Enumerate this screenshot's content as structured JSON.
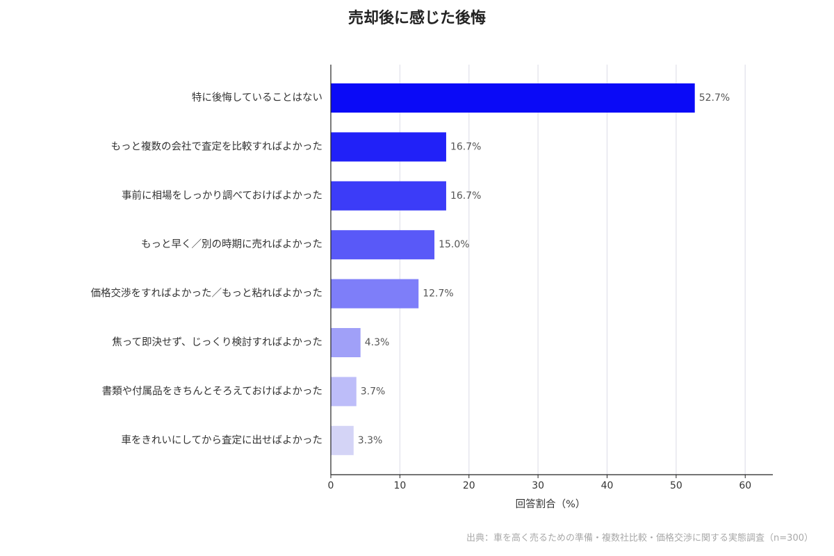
{
  "chart_data": {
    "type": "bar",
    "orientation": "horizontal",
    "title": "売却後に感じた後悔",
    "xlabel": "回答割合（%）",
    "ylabel": "",
    "xlim": [
      0,
      64
    ],
    "xticks": [
      "0",
      "10",
      "20",
      "30",
      "40",
      "50",
      "60"
    ],
    "grid": "vertical",
    "categories": [
      "特に後悔していることはない",
      "もっと複数の会社で査定を比較すればよかった",
      "事前に相場をしっかり調べておけばよかった",
      "もっと早く／別の時期に売ればよかった",
      "価格交渉をすればよかった／もっと粘ればよかった",
      "焦って即決せず、じっくり検討すればよかった",
      "書類や付属品をきちんとそろえておけばよかった",
      "車をきれいにしてから査定に出せばよかった"
    ],
    "values": [
      52.7,
      16.7,
      16.7,
      15.0,
      12.7,
      4.3,
      3.7,
      3.3
    ],
    "value_labels": [
      "52.7%",
      "16.7%",
      "16.7%",
      "15.0%",
      "12.7%",
      "4.3%",
      "3.7%",
      "3.3%"
    ],
    "colors": [
      "#0a0af7",
      "#2121f8",
      "#3c3cf8",
      "#5959f8",
      "#7e7ef9",
      "#a0a0f8",
      "#bdbdf9",
      "#d4d4f6"
    ]
  },
  "source": "出典：車を高く売るための準備・複数社比較・価格交渉に関する実態調査（n=300）"
}
